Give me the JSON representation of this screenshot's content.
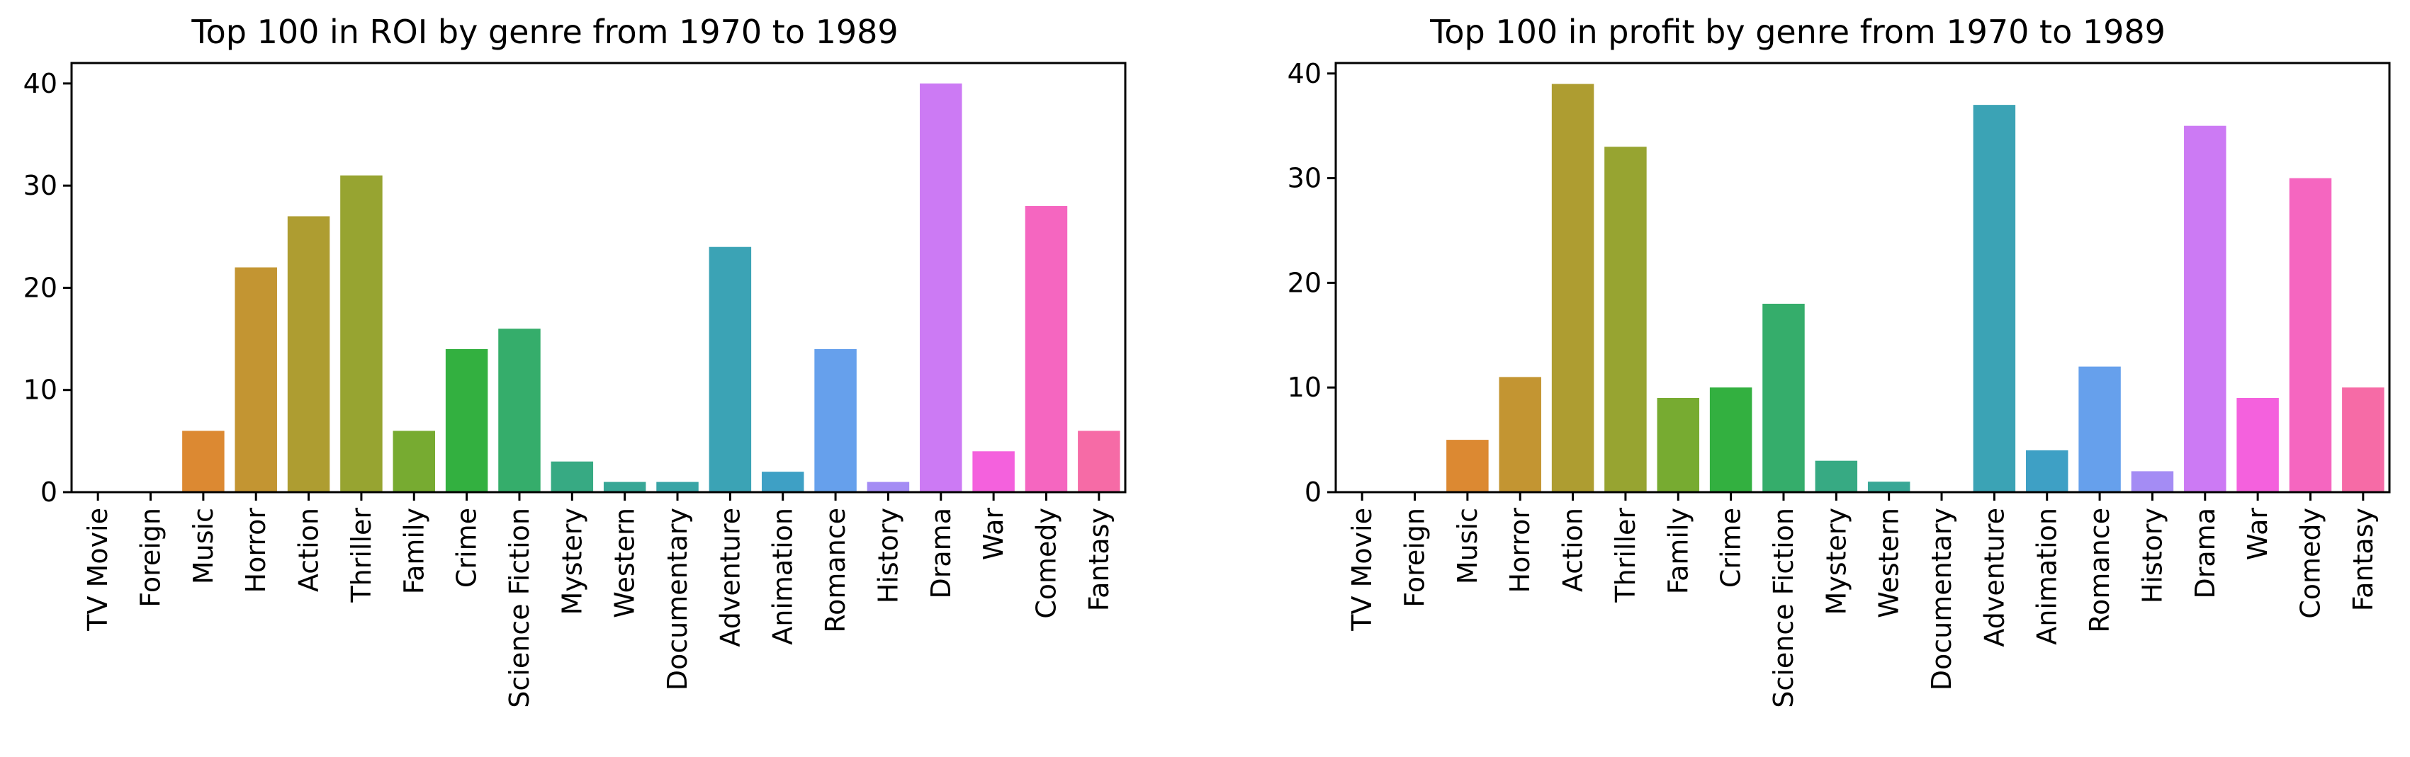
{
  "chart_data": [
    {
      "type": "bar",
      "title": "Top 100 in ROI by genre from 1970 to 1989",
      "xlabel": "",
      "ylabel": "",
      "ylim": [
        0,
        42
      ],
      "yticks": [
        0,
        10,
        20,
        30,
        40
      ],
      "grid": false,
      "categories": [
        "TV Movie",
        "Foreign",
        "Music",
        "Horror",
        "Action",
        "Thriller",
        "Family",
        "Crime",
        "Science Fiction",
        "Mystery",
        "Western",
        "Documentary",
        "Adventure",
        "Animation",
        "Romance",
        "History",
        "Drama",
        "War",
        "Comedy",
        "Fantasy"
      ],
      "values": [
        0,
        0,
        6,
        22,
        27,
        31,
        6,
        14,
        16,
        3,
        1,
        1,
        24,
        2,
        14,
        1,
        40,
        4,
        28,
        6
      ]
    },
    {
      "type": "bar",
      "title": "Top 100 in profit by genre from 1970 to 1989",
      "xlabel": "",
      "ylabel": "",
      "ylim": [
        0,
        41
      ],
      "yticks": [
        0,
        10,
        20,
        30,
        40
      ],
      "grid": false,
      "categories": [
        "TV Movie",
        "Foreign",
        "Music",
        "Horror",
        "Action",
        "Thriller",
        "Family",
        "Crime",
        "Science Fiction",
        "Mystery",
        "Western",
        "Documentary",
        "Adventure",
        "Animation",
        "Romance",
        "History",
        "Drama",
        "War",
        "Comedy",
        "Fantasy"
      ],
      "values": [
        0,
        0,
        5,
        11,
        39,
        33,
        9,
        10,
        18,
        3,
        1,
        0,
        37,
        4,
        12,
        2,
        35,
        9,
        30,
        10
      ]
    }
  ],
  "palette": [
    "#f77189",
    "#f7754f",
    "#dc8932",
    "#c39532",
    "#ae9d31",
    "#97a431",
    "#77ab31",
    "#33b040",
    "#35ad6b",
    "#37aa83",
    "#38a796",
    "#39a5a6",
    "#3ba3b5",
    "#3ea0c5",
    "#66a0ec",
    "#a48cf4",
    "#cc7af4",
    "#f461dd",
    "#f566c0",
    "#f66ba6"
  ]
}
